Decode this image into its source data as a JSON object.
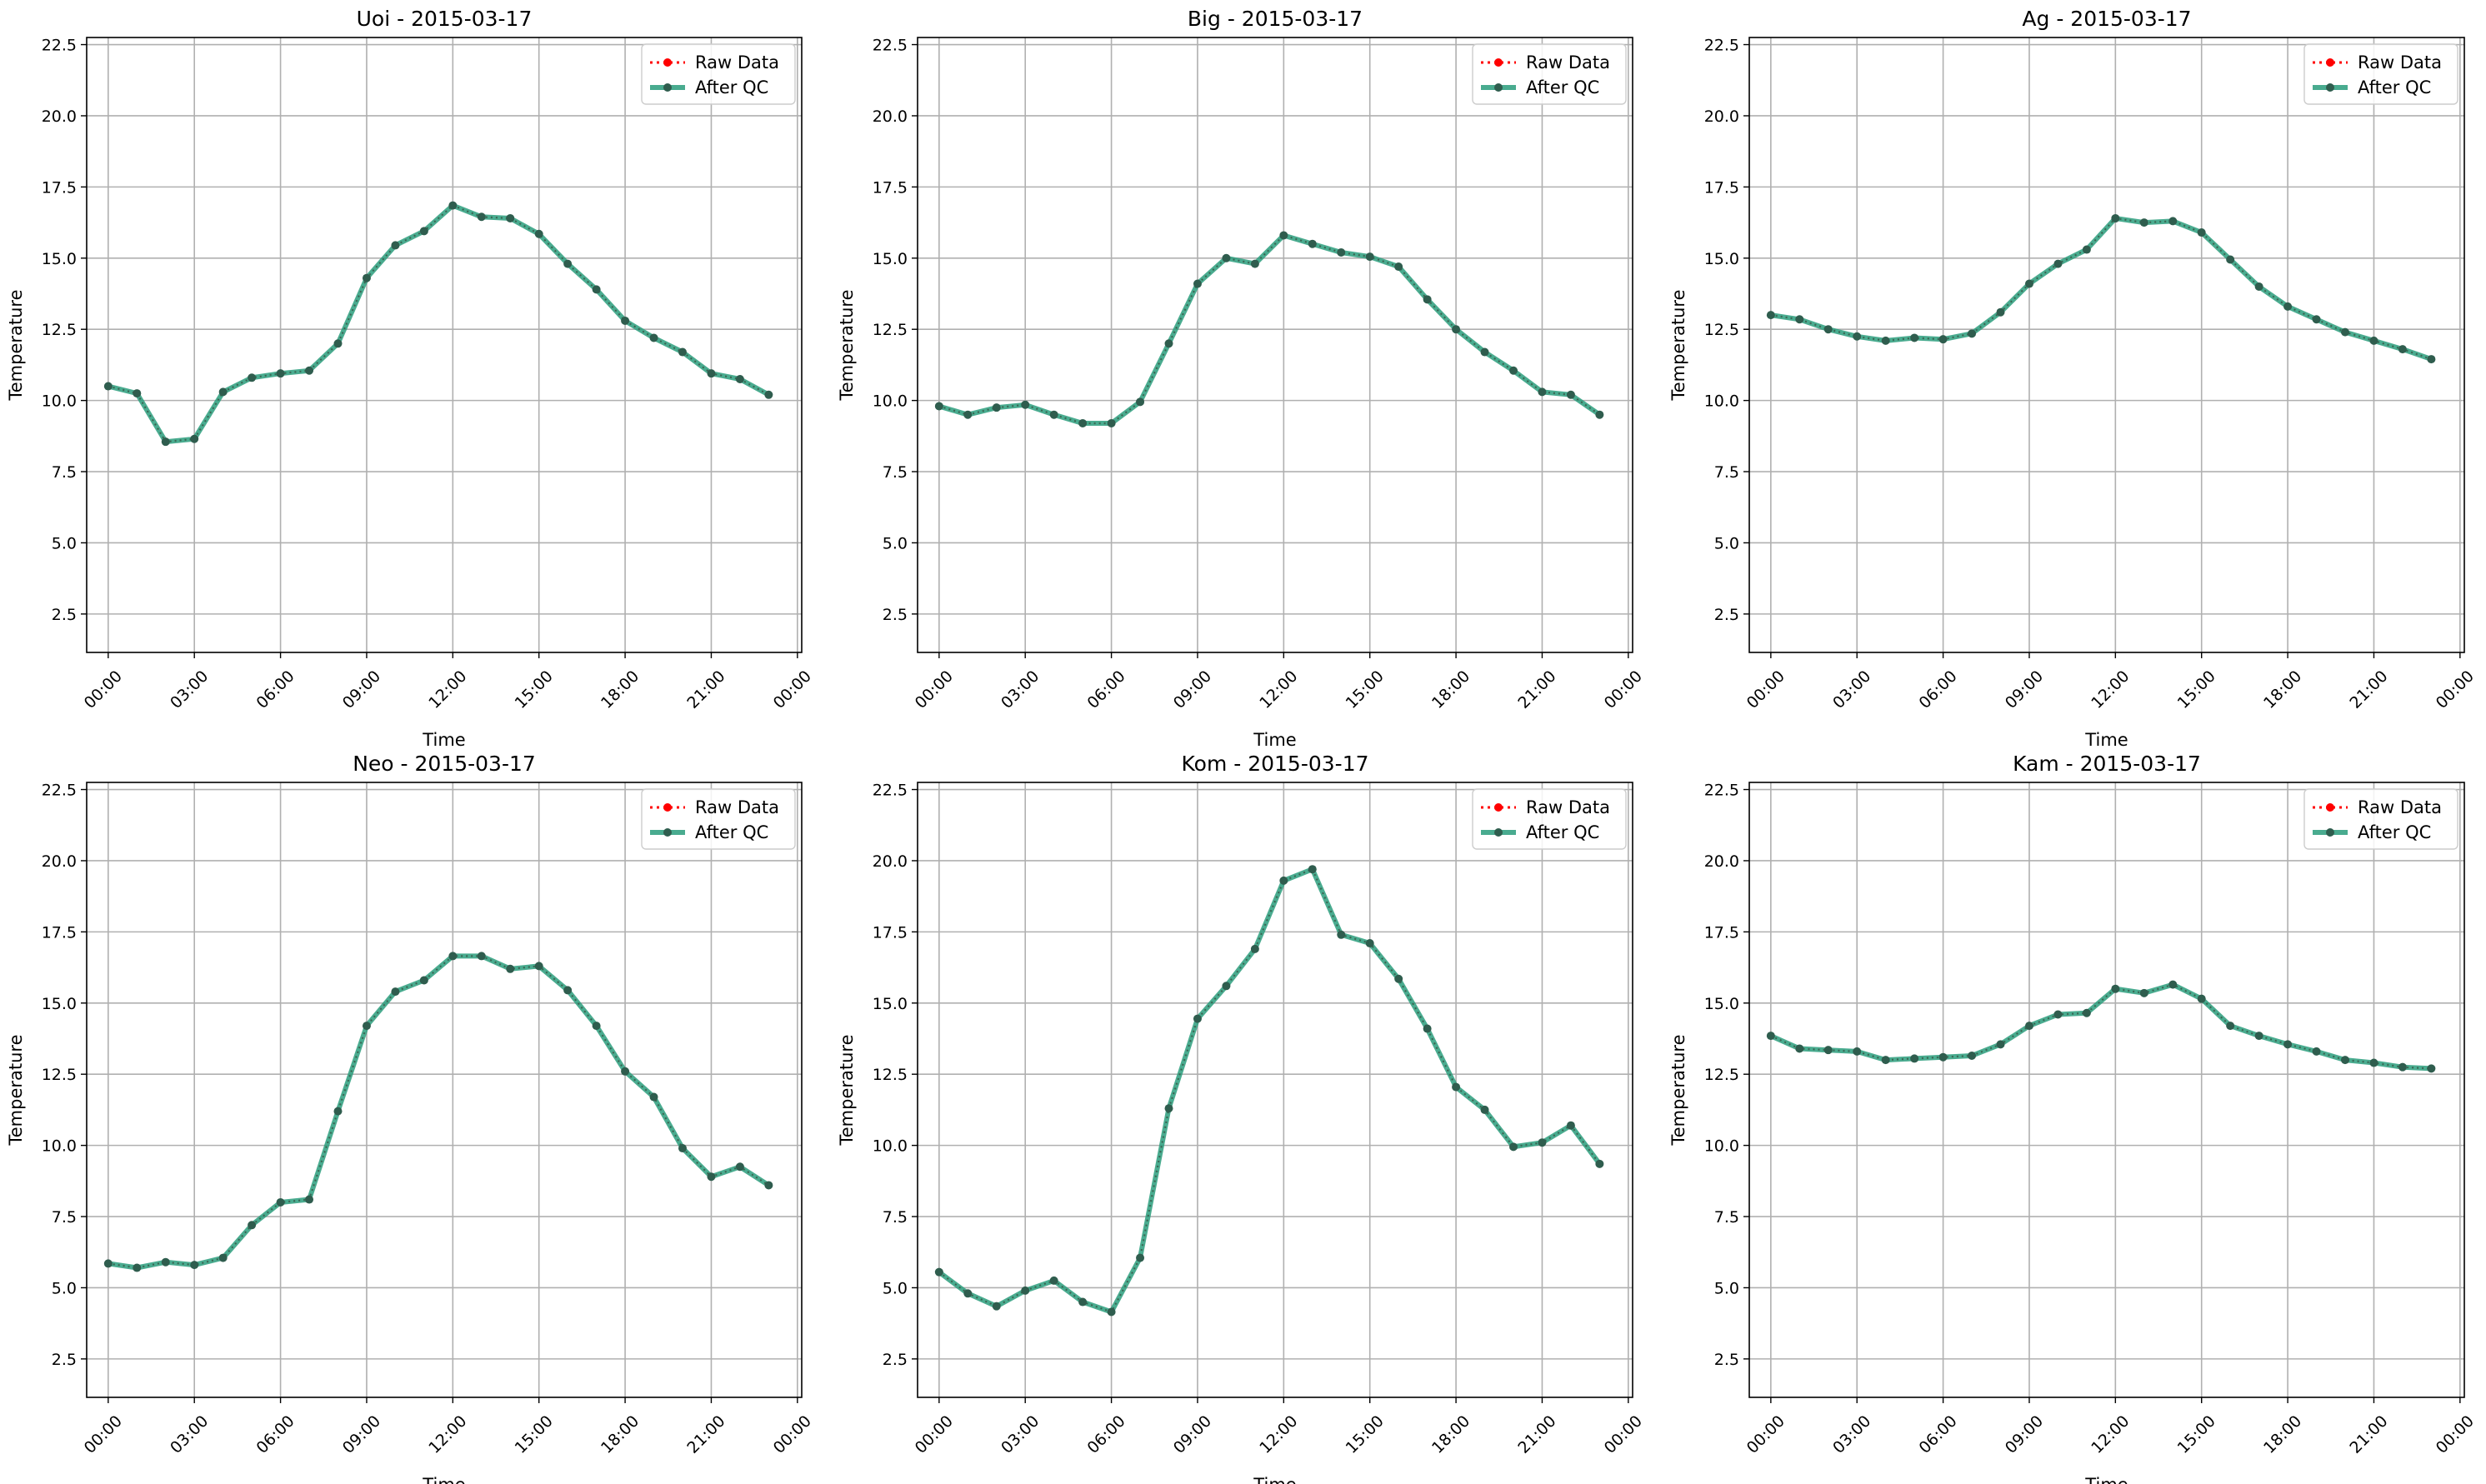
{
  "figure": {
    "background": "#ffffff",
    "grid_color": "#b0b0b0",
    "raw_color": "#ff0000",
    "qc_color": "#2a9d7c",
    "marker_dark": "#2f5d4e"
  },
  "chart_data": [
    {
      "type": "line",
      "title": "Uoi - 2015-03-17",
      "xlabel": "Time",
      "ylabel": "Temperature",
      "xlim": [
        -0.75,
        24.15
      ],
      "ylim": [
        1.15,
        22.75
      ],
      "yticks": [
        2.5,
        5.0,
        7.5,
        10.0,
        12.5,
        15.0,
        17.5,
        20.0,
        22.5
      ],
      "xticks": [
        0,
        3,
        6,
        9,
        12,
        15,
        18,
        21,
        24
      ],
      "xticklabels": [
        "00:00",
        "03:00",
        "06:00",
        "09:00",
        "12:00",
        "15:00",
        "18:00",
        "21:00",
        "00:00"
      ],
      "grid": true,
      "legend": "top-right",
      "x": [
        0,
        1,
        2,
        3,
        4,
        5,
        6,
        7,
        8,
        9,
        10,
        11,
        12,
        13,
        14,
        15,
        16,
        17,
        18,
        19,
        20,
        21,
        22,
        23
      ],
      "series": [
        {
          "name": "Raw Data",
          "values": [
            10.5,
            10.25,
            8.55,
            8.65,
            10.3,
            10.8,
            10.95,
            11.05,
            12.0,
            14.3,
            15.45,
            15.95,
            16.85,
            16.45,
            16.4,
            15.85,
            14.8,
            13.9,
            12.8,
            12.2,
            11.7,
            10.95,
            10.75,
            10.2
          ]
        },
        {
          "name": "After QC",
          "values": [
            10.5,
            10.25,
            8.55,
            8.65,
            10.3,
            10.8,
            10.95,
            11.05,
            12.0,
            14.3,
            15.45,
            15.95,
            16.85,
            16.45,
            16.4,
            15.85,
            14.8,
            13.9,
            12.8,
            12.2,
            11.7,
            10.95,
            10.75,
            10.2
          ]
        }
      ]
    },
    {
      "type": "line",
      "title": "Big - 2015-03-17",
      "xlabel": "Time",
      "ylabel": "Temperature",
      "xlim": [
        -0.75,
        24.15
      ],
      "ylim": [
        1.15,
        22.75
      ],
      "yticks": [
        2.5,
        5.0,
        7.5,
        10.0,
        12.5,
        15.0,
        17.5,
        20.0,
        22.5
      ],
      "xticks": [
        0,
        3,
        6,
        9,
        12,
        15,
        18,
        21,
        24
      ],
      "xticklabels": [
        "00:00",
        "03:00",
        "06:00",
        "09:00",
        "12:00",
        "15:00",
        "18:00",
        "21:00",
        "00:00"
      ],
      "grid": true,
      "legend": "top-right",
      "x": [
        0,
        1,
        2,
        3,
        4,
        5,
        6,
        7,
        8,
        9,
        10,
        11,
        12,
        13,
        14,
        15,
        16,
        17,
        18,
        19,
        20,
        21,
        22,
        23
      ],
      "series": [
        {
          "name": "Raw Data",
          "values": [
            9.8,
            9.5,
            9.75,
            9.85,
            9.5,
            9.2,
            9.2,
            9.95,
            12.0,
            14.1,
            15.0,
            14.8,
            15.8,
            15.5,
            15.2,
            15.05,
            14.7,
            13.55,
            12.5,
            11.7,
            11.05,
            10.3,
            10.2,
            9.5
          ]
        },
        {
          "name": "After QC",
          "values": [
            9.8,
            9.5,
            9.75,
            9.85,
            9.5,
            9.2,
            9.2,
            9.95,
            12.0,
            14.1,
            15.0,
            14.8,
            15.8,
            15.5,
            15.2,
            15.05,
            14.7,
            13.55,
            12.5,
            11.7,
            11.05,
            10.3,
            10.2,
            9.5
          ]
        }
      ]
    },
    {
      "type": "line",
      "title": "Ag - 2015-03-17",
      "xlabel": "Time",
      "ylabel": "Temperature",
      "xlim": [
        -0.75,
        24.15
      ],
      "ylim": [
        1.15,
        22.75
      ],
      "yticks": [
        2.5,
        5.0,
        7.5,
        10.0,
        12.5,
        15.0,
        17.5,
        20.0,
        22.5
      ],
      "xticks": [
        0,
        3,
        6,
        9,
        12,
        15,
        18,
        21,
        24
      ],
      "xticklabels": [
        "00:00",
        "03:00",
        "06:00",
        "09:00",
        "12:00",
        "15:00",
        "18:00",
        "21:00",
        "00:00"
      ],
      "grid": true,
      "legend": "top-right",
      "x": [
        0,
        1,
        2,
        3,
        4,
        5,
        6,
        7,
        8,
        9,
        10,
        11,
        12,
        13,
        14,
        15,
        16,
        17,
        18,
        19,
        20,
        21,
        22,
        23
      ],
      "series": [
        {
          "name": "Raw Data",
          "values": [
            13.0,
            12.85,
            12.5,
            12.25,
            12.1,
            12.2,
            12.15,
            12.35,
            13.1,
            14.1,
            14.8,
            15.3,
            16.4,
            16.25,
            16.3,
            15.9,
            14.95,
            14.0,
            13.3,
            12.85,
            12.4,
            12.1,
            11.8,
            11.45
          ]
        },
        {
          "name": "After QC",
          "values": [
            13.0,
            12.85,
            12.5,
            12.25,
            12.1,
            12.2,
            12.15,
            12.35,
            13.1,
            14.1,
            14.8,
            15.3,
            16.4,
            16.25,
            16.3,
            15.9,
            14.95,
            14.0,
            13.3,
            12.85,
            12.4,
            12.1,
            11.8,
            11.45
          ]
        }
      ]
    },
    {
      "type": "line",
      "title": "Neo - 2015-03-17",
      "xlabel": "Time",
      "ylabel": "Temperature",
      "xlim": [
        -0.75,
        24.15
      ],
      "ylim": [
        1.15,
        22.75
      ],
      "yticks": [
        2.5,
        5.0,
        7.5,
        10.0,
        12.5,
        15.0,
        17.5,
        20.0,
        22.5
      ],
      "xticks": [
        0,
        3,
        6,
        9,
        12,
        15,
        18,
        21,
        24
      ],
      "xticklabels": [
        "00:00",
        "03:00",
        "06:00",
        "09:00",
        "12:00",
        "15:00",
        "18:00",
        "21:00",
        "00:00"
      ],
      "grid": true,
      "legend": "top-right",
      "x": [
        0,
        1,
        2,
        3,
        4,
        5,
        6,
        7,
        8,
        9,
        10,
        11,
        12,
        13,
        14,
        15,
        16,
        17,
        18,
        19,
        20,
        21,
        22,
        23
      ],
      "series": [
        {
          "name": "Raw Data",
          "values": [
            5.85,
            5.7,
            5.9,
            5.8,
            6.05,
            7.2,
            8.0,
            8.1,
            11.2,
            14.2,
            15.4,
            15.8,
            16.65,
            16.65,
            16.2,
            16.3,
            15.45,
            14.2,
            12.6,
            11.7,
            9.9,
            8.9,
            9.25,
            8.6
          ]
        },
        {
          "name": "After QC",
          "values": [
            5.85,
            5.7,
            5.9,
            5.8,
            6.05,
            7.2,
            8.0,
            8.1,
            11.2,
            14.2,
            15.4,
            15.8,
            16.65,
            16.65,
            16.2,
            16.3,
            15.45,
            14.2,
            12.6,
            11.7,
            9.9,
            8.9,
            9.25,
            8.6
          ]
        }
      ]
    },
    {
      "type": "line",
      "title": "Kom - 2015-03-17",
      "xlabel": "Time",
      "ylabel": "Temperature",
      "xlim": [
        -0.75,
        24.15
      ],
      "ylim": [
        1.15,
        22.75
      ],
      "yticks": [
        2.5,
        5.0,
        7.5,
        10.0,
        12.5,
        15.0,
        17.5,
        20.0,
        22.5
      ],
      "xticks": [
        0,
        3,
        6,
        9,
        12,
        15,
        18,
        21,
        24
      ],
      "xticklabels": [
        "00:00",
        "03:00",
        "06:00",
        "09:00",
        "12:00",
        "15:00",
        "18:00",
        "21:00",
        "00:00"
      ],
      "grid": true,
      "legend": "top-right",
      "x": [
        0,
        1,
        2,
        3,
        4,
        5,
        6,
        7,
        8,
        9,
        10,
        11,
        12,
        13,
        14,
        15,
        16,
        17,
        18,
        19,
        20,
        21,
        22,
        23
      ],
      "series": [
        {
          "name": "Raw Data",
          "values": [
            5.55,
            4.8,
            4.35,
            4.9,
            5.25,
            4.5,
            4.15,
            6.05,
            11.3,
            14.45,
            15.6,
            16.9,
            19.3,
            19.7,
            17.4,
            17.1,
            15.85,
            14.1,
            12.05,
            11.25,
            9.95,
            10.1,
            10.7,
            9.35
          ]
        },
        {
          "name": "After QC",
          "values": [
            5.55,
            4.8,
            4.35,
            4.9,
            5.25,
            4.5,
            4.15,
            6.05,
            11.3,
            14.45,
            15.6,
            16.9,
            19.3,
            19.7,
            17.4,
            17.1,
            15.85,
            14.1,
            12.05,
            11.25,
            9.95,
            10.1,
            10.7,
            9.35
          ]
        }
      ]
    },
    {
      "type": "line",
      "title": "Kam - 2015-03-17",
      "xlabel": "Time",
      "ylabel": "Temperature",
      "xlim": [
        -0.75,
        24.15
      ],
      "ylim": [
        1.15,
        22.75
      ],
      "yticks": [
        2.5,
        5.0,
        7.5,
        10.0,
        12.5,
        15.0,
        17.5,
        20.0,
        22.5
      ],
      "xticks": [
        0,
        3,
        6,
        9,
        12,
        15,
        18,
        21,
        24
      ],
      "xticklabels": [
        "00:00",
        "03:00",
        "06:00",
        "09:00",
        "12:00",
        "15:00",
        "18:00",
        "21:00",
        "00:00"
      ],
      "grid": true,
      "legend": "top-right",
      "x": [
        0,
        1,
        2,
        3,
        4,
        5,
        6,
        7,
        8,
        9,
        10,
        11,
        12,
        13,
        14,
        15,
        16,
        17,
        18,
        19,
        20,
        21,
        22,
        23
      ],
      "series": [
        {
          "name": "Raw Data",
          "values": [
            13.85,
            13.4,
            13.35,
            13.3,
            13.0,
            13.05,
            13.1,
            13.15,
            13.55,
            14.2,
            14.6,
            14.65,
            15.5,
            15.35,
            15.65,
            15.15,
            14.2,
            13.85,
            13.55,
            13.3,
            13.0,
            12.9,
            12.75,
            12.7
          ]
        },
        {
          "name": "After QC",
          "values": [
            13.85,
            13.4,
            13.35,
            13.3,
            13.0,
            13.05,
            13.1,
            13.15,
            13.55,
            14.2,
            14.6,
            14.65,
            15.5,
            15.35,
            15.65,
            15.15,
            14.2,
            13.85,
            13.55,
            13.3,
            13.0,
            12.9,
            12.75,
            12.7
          ]
        }
      ]
    }
  ]
}
